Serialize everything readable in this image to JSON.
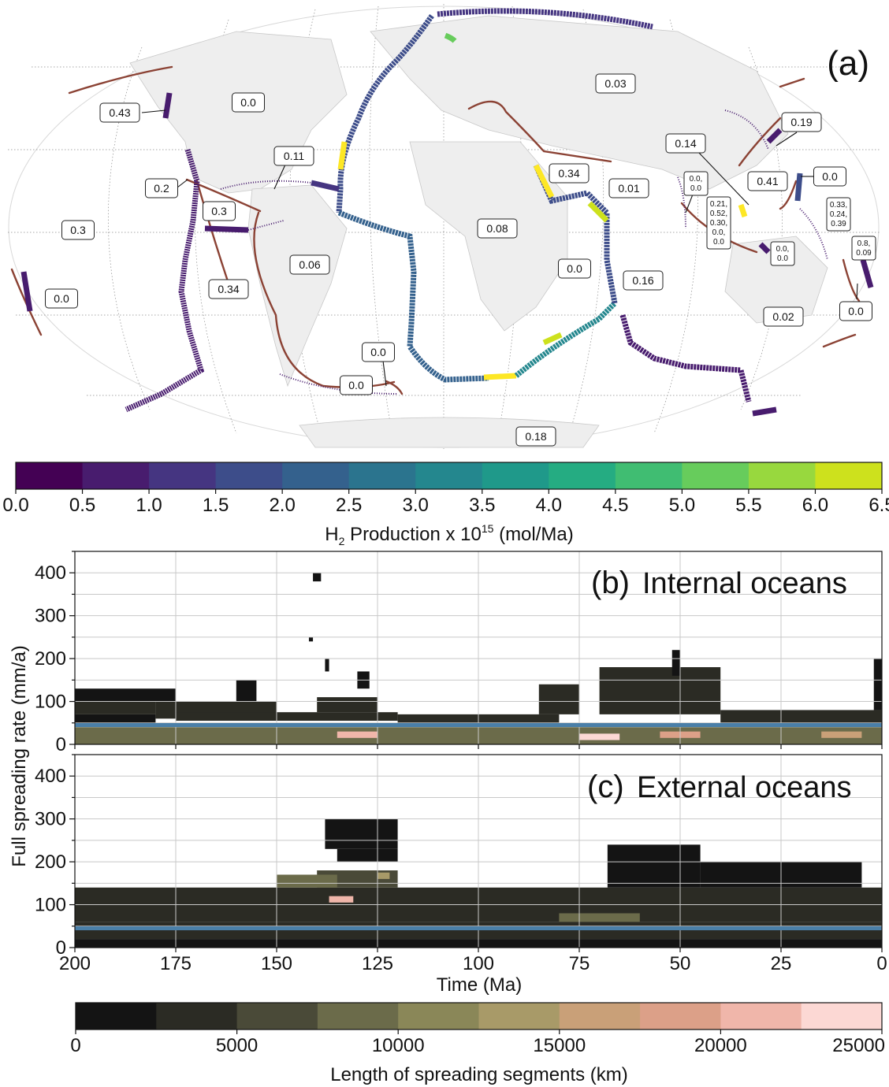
{
  "panel_a": {
    "label": "(a)",
    "region_values": [
      {
        "id": "r1",
        "text": "0.43"
      },
      {
        "id": "r2",
        "text": "0.0"
      },
      {
        "id": "r3",
        "text": "0.11"
      },
      {
        "id": "r4",
        "text": "0.2"
      },
      {
        "id": "r5",
        "text": "0.3"
      },
      {
        "id": "r6",
        "text": "0.3"
      },
      {
        "id": "r7",
        "text": "0.06"
      },
      {
        "id": "r8",
        "text": "0.34"
      },
      {
        "id": "r9",
        "text": "0.0"
      },
      {
        "id": "r10",
        "text": "0.0"
      },
      {
        "id": "r11",
        "text": "0.0"
      },
      {
        "id": "r12",
        "text": "0.08"
      },
      {
        "id": "r13",
        "text": "0.34"
      },
      {
        "id": "r14",
        "text": "0.0"
      },
      {
        "id": "r15",
        "text": "0.03"
      },
      {
        "id": "r16",
        "text": "0.01"
      },
      {
        "id": "r17",
        "text": "0.16"
      },
      {
        "id": "r18",
        "text": "0.02"
      },
      {
        "id": "r19",
        "text": "0.14"
      },
      {
        "id": "r20",
        "text": "0.19"
      },
      {
        "id": "r21",
        "text": "0.41"
      },
      {
        "id": "r22",
        "text": "0.0"
      },
      {
        "id": "r23",
        "text": "0.18"
      },
      {
        "id": "r24",
        "text": "0.0"
      }
    ],
    "small_labels": [
      {
        "id": "s1",
        "lines": [
          "0.0,",
          "0.0"
        ]
      },
      {
        "id": "s2",
        "lines": [
          "0.21,",
          "0.52,",
          "0.30,",
          "0.0,",
          "0.0"
        ]
      },
      {
        "id": "s3",
        "lines": [
          "0.0,",
          "0.0"
        ]
      },
      {
        "id": "s4",
        "lines": [
          "0.33,",
          "0.24,",
          "0.39"
        ]
      },
      {
        "id": "s5",
        "lines": [
          "0.8,",
          "0.09"
        ]
      }
    ],
    "colorbar": {
      "ticks": [
        "0.0",
        "0.5",
        "1.0",
        "1.5",
        "2.0",
        "2.5",
        "3.0",
        "3.5",
        "4.0",
        "4.5",
        "5.0",
        "5.5",
        "6.0",
        "6.5"
      ],
      "colors": [
        "#440154",
        "#481c6e",
        "#453581",
        "#3d4d8a",
        "#34618d",
        "#2b748e",
        "#24878e",
        "#1f998a",
        "#25ac82",
        "#40bd72",
        "#67cc5c",
        "#98d83e",
        "#cde11d",
        "#fde725"
      ],
      "label_main": "H",
      "label_sub": "2",
      "label_mid": " Production x 10",
      "label_sup": "15",
      "label_end": " (mol/Ma)"
    }
  },
  "panel_b": {
    "label": "(b)",
    "title": "Internal oceans"
  },
  "panel_c": {
    "label": "(c)",
    "title": "External oceans"
  },
  "shared_axes": {
    "ylabel": "Full spreading rate (mm/a)",
    "xlabel": "Time (Ma)"
  },
  "length_colorbar": {
    "label": "Length of spreading segments (km)",
    "ticks": [
      "0",
      "5000",
      "10000",
      "15000",
      "20000",
      "25000"
    ],
    "colors": [
      "#141414",
      "#2b2b24",
      "#4a4a38",
      "#6b6b4a",
      "#8a8758",
      "#a89a68",
      "#c9a078",
      "#dca088",
      "#f0b6aa",
      "#fcd8d4"
    ]
  },
  "chart_data": [
    {
      "type": "heatmap",
      "title": "Internal oceans",
      "xlabel": "Time (Ma)",
      "ylabel": "Full spreading rate (mm/a)",
      "xlim": [
        200,
        0
      ],
      "ylim": [
        0,
        450
      ],
      "x_ticks": [
        200,
        175,
        150,
        125,
        100,
        75,
        50,
        25,
        0
      ],
      "y_ticks": [
        0,
        100,
        200,
        300,
        400
      ],
      "grid": true,
      "reference_line_y": 45,
      "color_label": "Length of spreading segments (km)",
      "color_range": [
        0,
        25000
      ],
      "cells": [
        {
          "x0": 200,
          "x1": 180,
          "y0": 50,
          "y1": 70,
          "v": 1500
        },
        {
          "x0": 200,
          "x1": 180,
          "y0": 70,
          "y1": 100,
          "v": 3000
        },
        {
          "x0": 200,
          "x1": 175,
          "y0": 100,
          "y1": 130,
          "v": 2000
        },
        {
          "x0": 180,
          "x1": 150,
          "y0": 60,
          "y1": 100,
          "v": 2500
        },
        {
          "x0": 175,
          "x1": 120,
          "y0": 55,
          "y1": 75,
          "v": 4000
        },
        {
          "x0": 160,
          "x1": 155,
          "y0": 100,
          "y1": 150,
          "v": 1000
        },
        {
          "x0": 140,
          "x1": 125,
          "y0": 75,
          "y1": 110,
          "v": 3000
        },
        {
          "x0": 141,
          "x1": 139,
          "y0": 380,
          "y1": 400,
          "v": 500
        },
        {
          "x0": 142,
          "x1": 141,
          "y0": 240,
          "y1": 250,
          "v": 500
        },
        {
          "x0": 138,
          "x1": 137,
          "y0": 170,
          "y1": 200,
          "v": 500
        },
        {
          "x0": 130,
          "x1": 127,
          "y0": 130,
          "y1": 170,
          "v": 800
        },
        {
          "x0": 120,
          "x1": 80,
          "y0": 50,
          "y1": 70,
          "v": 3000
        },
        {
          "x0": 85,
          "x1": 75,
          "y0": 70,
          "y1": 140,
          "v": 2500
        },
        {
          "x0": 70,
          "x1": 40,
          "y0": 70,
          "y1": 180,
          "v": 3000
        },
        {
          "x0": 52,
          "x1": 50,
          "y0": 160,
          "y1": 220,
          "v": 800
        },
        {
          "x0": 40,
          "x1": 0,
          "y0": 50,
          "y1": 80,
          "v": 3500
        },
        {
          "x0": 2,
          "x1": 0,
          "y0": 80,
          "y1": 200,
          "v": 1500
        },
        {
          "x0": 200,
          "x1": 0,
          "y0": 0,
          "y1": 40,
          "v": 9000
        },
        {
          "x0": 135,
          "x1": 125,
          "y0": 15,
          "y1": 30,
          "v": 20000
        },
        {
          "x0": 75,
          "x1": 65,
          "y0": 10,
          "y1": 25,
          "v": 23000
        },
        {
          "x0": 55,
          "x1": 45,
          "y0": 15,
          "y1": 30,
          "v": 19000
        },
        {
          "x0": 15,
          "x1": 5,
          "y0": 15,
          "y1": 30,
          "v": 17000
        }
      ]
    },
    {
      "type": "heatmap",
      "title": "External oceans",
      "xlabel": "Time (Ma)",
      "ylabel": "Full spreading rate (mm/a)",
      "xlim": [
        200,
        0
      ],
      "ylim": [
        0,
        450
      ],
      "x_ticks": [
        200,
        175,
        150,
        125,
        100,
        75,
        50,
        25,
        0
      ],
      "y_ticks": [
        0,
        100,
        200,
        300,
        400
      ],
      "grid": true,
      "reference_line_y": 45,
      "color_label": "Length of spreading segments (km)",
      "color_range": [
        0,
        25000
      ],
      "cells": [
        {
          "x0": 200,
          "x1": 0,
          "y0": 60,
          "y1": 140,
          "v": 4000
        },
        {
          "x0": 200,
          "x1": 0,
          "y0": 20,
          "y1": 60,
          "v": 2500
        },
        {
          "x0": 200,
          "x1": 0,
          "y0": 0,
          "y1": 20,
          "v": 1000
        },
        {
          "x0": 140,
          "x1": 120,
          "y0": 140,
          "y1": 180,
          "v": 5000
        },
        {
          "x0": 137,
          "x1": 131,
          "y0": 105,
          "y1": 120,
          "v": 21000
        },
        {
          "x0": 125,
          "x1": 122,
          "y0": 160,
          "y1": 175,
          "v": 14000
        },
        {
          "x0": 138,
          "x1": 120,
          "y0": 230,
          "y1": 300,
          "v": 1500
        },
        {
          "x0": 135,
          "x1": 120,
          "y0": 200,
          "y1": 230,
          "v": 800
        },
        {
          "x0": 68,
          "x1": 45,
          "y0": 140,
          "y1": 240,
          "v": 1500
        },
        {
          "x0": 45,
          "x1": 5,
          "y0": 140,
          "y1": 200,
          "v": 1200
        },
        {
          "x0": 150,
          "x1": 135,
          "y0": 140,
          "y1": 170,
          "v": 9000
        },
        {
          "x0": 80,
          "x1": 60,
          "y0": 60,
          "y1": 80,
          "v": 8000
        }
      ]
    }
  ]
}
